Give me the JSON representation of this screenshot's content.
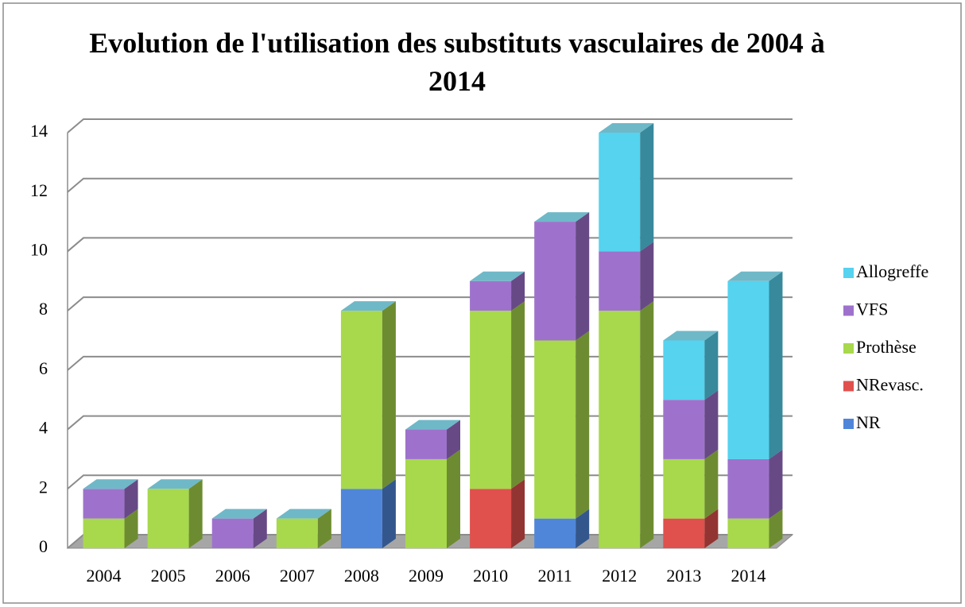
{
  "chart_data": {
    "type": "bar3d_stacked",
    "title": "Evolution de l'utilisation des substituts vasculaires de 2004 à 2014",
    "categories": [
      "2004",
      "2005",
      "2006",
      "2007",
      "2008",
      "2009",
      "2010",
      "2011",
      "2012",
      "2013",
      "2014"
    ],
    "series": [
      {
        "name": "NR",
        "color": "#4f86d9",
        "values": [
          0,
          0,
          0,
          0,
          2,
          0,
          0,
          1,
          0,
          0,
          0
        ]
      },
      {
        "name": "NRevasc.",
        "color": "#e0504d",
        "values": [
          0,
          0,
          0,
          0,
          0,
          0,
          2,
          0,
          0,
          1,
          0
        ]
      },
      {
        "name": "Prothèse",
        "color": "#a8d84c",
        "values": [
          1,
          2,
          0,
          1,
          6,
          3,
          6,
          6,
          8,
          2,
          1
        ]
      },
      {
        "name": "VFS",
        "color": "#9e72cc",
        "values": [
          1,
          0,
          1,
          0,
          0,
          1,
          1,
          4,
          2,
          2,
          2
        ]
      },
      {
        "name": "Allogreffe",
        "color": "#55d3ef",
        "values": [
          0,
          0,
          0,
          0,
          0,
          0,
          0,
          0,
          4,
          2,
          6
        ]
      }
    ],
    "stacked": true,
    "ylim": [
      0,
      14
    ],
    "yticks": [
      0,
      2,
      4,
      6,
      8,
      10,
      12,
      14
    ],
    "grid": true,
    "legend": "right"
  }
}
